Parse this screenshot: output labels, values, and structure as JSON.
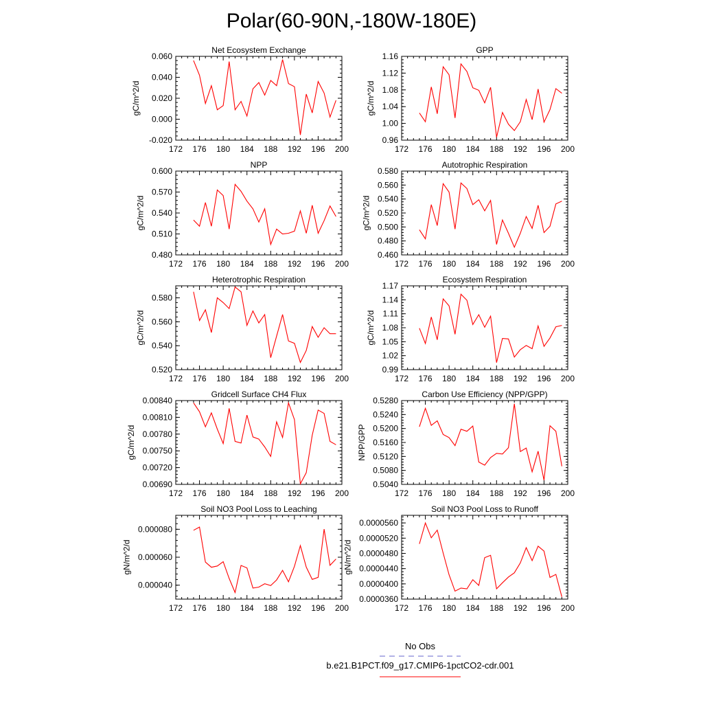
{
  "figure": {
    "title": "Polar(60-90N,-180W-180E)",
    "series_color": "#ff0000",
    "obs_color": "#6666cc",
    "legend": {
      "obs_label": "No Obs",
      "model_label": "b.e21.B1PCT.f09_g17.CMIP6-1pctCO2-cdr.001"
    }
  },
  "chart_data": [
    {
      "type": "line",
      "title": "Net Ecosystem Exchange",
      "ylabel": "gC/m^2/d",
      "xlim": [
        172,
        200
      ],
      "xticks": [
        172,
        176,
        180,
        184,
        188,
        192,
        196,
        200
      ],
      "ylim": [
        -0.02,
        0.06
      ],
      "yticks": [
        "-0.020",
        "0.000",
        "0.020",
        "0.040",
        "0.060"
      ],
      "grid": false,
      "series": [
        {
          "x": [
            175,
            176,
            177,
            178,
            179,
            180,
            181,
            182,
            183,
            184,
            185,
            186,
            187,
            188,
            189,
            190,
            191,
            192,
            193,
            194,
            195,
            196,
            197,
            198,
            199
          ],
          "values": [
            0.056,
            0.042,
            0.015,
            0.032,
            0.009,
            0.013,
            0.055,
            0.009,
            0.017,
            0.003,
            0.029,
            0.035,
            0.023,
            0.037,
            0.032,
            0.057,
            0.034,
            0.031,
            -0.015,
            0.024,
            0.006,
            0.036,
            0.025,
            0.002,
            0.018
          ]
        }
      ]
    },
    {
      "type": "line",
      "title": "GPP",
      "ylabel": "gC/m^2/d",
      "xlim": [
        172,
        200
      ],
      "xticks": [
        172,
        176,
        180,
        184,
        188,
        192,
        196,
        200
      ],
      "ylim": [
        0.96,
        1.16
      ],
      "yticks": [
        "0.96",
        "1.00",
        "1.04",
        "1.08",
        "1.12",
        "1.16"
      ],
      "grid": false,
      "series": [
        {
          "x": [
            175,
            176,
            177,
            178,
            179,
            180,
            181,
            182,
            183,
            184,
            185,
            186,
            187,
            188,
            189,
            190,
            191,
            192,
            193,
            194,
            195,
            196,
            197,
            198,
            199
          ],
          "values": [
            1.025,
            1.004,
            1.087,
            1.023,
            1.135,
            1.116,
            1.013,
            1.142,
            1.124,
            1.085,
            1.079,
            1.049,
            1.086,
            0.967,
            1.026,
            0.998,
            0.983,
            1.004,
            1.057,
            1.009,
            1.082,
            1.003,
            1.033,
            1.083,
            1.072
          ]
        }
      ]
    },
    {
      "type": "line",
      "title": "NPP",
      "ylabel": "gC/m^2/d",
      "xlim": [
        172,
        200
      ],
      "xticks": [
        172,
        176,
        180,
        184,
        188,
        192,
        196,
        200
      ],
      "ylim": [
        0.48,
        0.6
      ],
      "yticks": [
        "0.480",
        "0.510",
        "0.540",
        "0.570",
        "0.600"
      ],
      "grid": false,
      "series": [
        {
          "x": [
            175,
            176,
            177,
            178,
            179,
            180,
            181,
            182,
            183,
            184,
            185,
            186,
            187,
            188,
            189,
            190,
            191,
            192,
            193,
            194,
            195,
            196,
            197,
            198,
            199
          ],
          "values": [
            0.53,
            0.521,
            0.555,
            0.521,
            0.573,
            0.565,
            0.517,
            0.581,
            0.571,
            0.557,
            0.546,
            0.527,
            0.546,
            0.495,
            0.517,
            0.51,
            0.511,
            0.514,
            0.543,
            0.511,
            0.551,
            0.511,
            0.529,
            0.55,
            0.535
          ]
        }
      ]
    },
    {
      "type": "line",
      "title": "Autotrophic Respiration",
      "ylabel": "gC/m^2/d",
      "xlim": [
        172,
        200
      ],
      "xticks": [
        172,
        176,
        180,
        184,
        188,
        192,
        196,
        200
      ],
      "ylim": [
        0.46,
        0.58
      ],
      "yticks": [
        "0.460",
        "0.480",
        "0.500",
        "0.520",
        "0.540",
        "0.560",
        "0.580"
      ],
      "grid": false,
      "series": [
        {
          "x": [
            175,
            176,
            177,
            178,
            179,
            180,
            181,
            182,
            183,
            184,
            185,
            186,
            187,
            188,
            189,
            190,
            191,
            192,
            193,
            194,
            195,
            196,
            197,
            198,
            199
          ],
          "values": [
            0.496,
            0.483,
            0.532,
            0.502,
            0.562,
            0.55,
            0.497,
            0.563,
            0.555,
            0.532,
            0.539,
            0.523,
            0.538,
            0.475,
            0.51,
            0.491,
            0.471,
            0.491,
            0.515,
            0.498,
            0.531,
            0.492,
            0.501,
            0.533,
            0.537
          ]
        }
      ]
    },
    {
      "type": "line",
      "title": "Heterotrophic Respiration",
      "ylabel": "gC/m^2/d",
      "xlim": [
        172,
        200
      ],
      "xticks": [
        172,
        176,
        180,
        184,
        188,
        192,
        196,
        200
      ],
      "ylim": [
        0.52,
        0.59
      ],
      "yticks": [
        "0.520",
        "0.540",
        "0.560",
        "0.580"
      ],
      "grid": false,
      "series": [
        {
          "x": [
            175,
            176,
            177,
            178,
            179,
            180,
            181,
            182,
            183,
            184,
            185,
            186,
            187,
            188,
            189,
            190,
            191,
            192,
            193,
            194,
            195,
            196,
            197,
            198,
            199
          ],
          "values": [
            0.585,
            0.561,
            0.57,
            0.551,
            0.58,
            0.576,
            0.571,
            0.589,
            0.585,
            0.557,
            0.569,
            0.559,
            0.566,
            0.53,
            0.548,
            0.566,
            0.544,
            0.542,
            0.526,
            0.536,
            0.556,
            0.547,
            0.555,
            0.55,
            0.55
          ]
        }
      ]
    },
    {
      "type": "line",
      "title": "Ecosystem Respiration",
      "ylabel": "gC/m^2/d",
      "xlim": [
        172,
        200
      ],
      "xticks": [
        172,
        176,
        180,
        184,
        188,
        192,
        196,
        200
      ],
      "ylim": [
        0.99,
        1.17
      ],
      "yticks": [
        "0.99",
        "1.02",
        "1.05",
        "1.08",
        "1.11",
        "1.14",
        "1.17"
      ],
      "grid": false,
      "series": [
        {
          "x": [
            175,
            176,
            177,
            178,
            179,
            180,
            181,
            182,
            183,
            184,
            185,
            186,
            187,
            188,
            189,
            190,
            191,
            192,
            193,
            194,
            195,
            196,
            197,
            198,
            199
          ],
          "values": [
            1.079,
            1.046,
            1.103,
            1.054,
            1.142,
            1.127,
            1.066,
            1.152,
            1.139,
            1.087,
            1.108,
            1.081,
            1.105,
            1.005,
            1.057,
            1.056,
            1.017,
            1.033,
            1.042,
            1.035,
            1.084,
            1.04,
            1.058,
            1.082,
            1.085
          ]
        }
      ]
    },
    {
      "type": "line",
      "title": "Gridcell Surface CH4 Flux",
      "ylabel": "gC/m^2/d",
      "xlim": [
        172,
        200
      ],
      "xticks": [
        172,
        176,
        180,
        184,
        188,
        192,
        196,
        200
      ],
      "ylim": [
        0.0069,
        0.0084
      ],
      "yticks": [
        "0.00690",
        "0.00720",
        "0.00750",
        "0.00780",
        "0.00810",
        "0.00840"
      ],
      "grid": false,
      "series": [
        {
          "x": [
            175,
            176,
            177,
            178,
            179,
            180,
            181,
            182,
            183,
            184,
            185,
            186,
            187,
            188,
            189,
            190,
            191,
            192,
            193,
            194,
            195,
            196,
            197,
            198,
            199
          ],
          "values": [
            0.00836,
            0.0082,
            0.00793,
            0.00818,
            0.00789,
            0.00763,
            0.00826,
            0.00767,
            0.00764,
            0.00814,
            0.00775,
            0.00771,
            0.00757,
            0.0074,
            0.00802,
            0.00774,
            0.00836,
            0.00806,
            0.00691,
            0.00711,
            0.00778,
            0.00823,
            0.00817,
            0.00767,
            0.00761
          ]
        }
      ]
    },
    {
      "type": "line",
      "title": "Carbon Use Efficiency (NPP/GPP)",
      "ylabel": "NPP/GPP",
      "xlim": [
        172,
        200
      ],
      "xticks": [
        172,
        176,
        180,
        184,
        188,
        192,
        196,
        200
      ],
      "ylim": [
        0.504,
        0.528
      ],
      "yticks": [
        "0.5040",
        "0.5080",
        "0.5120",
        "0.5160",
        "0.5200",
        "0.5240",
        "0.5280"
      ],
      "grid": false,
      "series": [
        {
          "x": [
            175,
            176,
            177,
            178,
            179,
            180,
            181,
            182,
            183,
            184,
            185,
            186,
            187,
            188,
            189,
            190,
            191,
            192,
            193,
            194,
            195,
            196,
            197,
            198,
            199
          ],
          "values": [
            0.5205,
            0.5258,
            0.5209,
            0.5222,
            0.5183,
            0.5174,
            0.5151,
            0.5198,
            0.5192,
            0.5207,
            0.5104,
            0.5095,
            0.5117,
            0.5129,
            0.5127,
            0.5145,
            0.5271,
            0.5134,
            0.5144,
            0.5076,
            0.5135,
            0.5052,
            0.5208,
            0.5192,
            0.5092
          ]
        }
      ]
    },
    {
      "type": "line",
      "title": "Soil NO3 Pool Loss to Leaching",
      "ylabel": "gN/m^2/d",
      "xlim": [
        172,
        200
      ],
      "xticks": [
        172,
        176,
        180,
        184,
        188,
        192,
        196,
        200
      ],
      "ylim": [
        3e-05,
        9e-05
      ],
      "yticks": [
        "0.000040",
        "0.000060",
        "0.000080"
      ],
      "grid": false,
      "series": [
        {
          "x": [
            175,
            176,
            177,
            178,
            179,
            180,
            181,
            182,
            183,
            184,
            185,
            186,
            187,
            188,
            189,
            190,
            191,
            192,
            193,
            194,
            195,
            196,
            197,
            198,
            199
          ],
          "values": [
            7.93e-05,
            8.16e-05,
            5.65e-05,
            5.28e-05,
            5.37e-05,
            5.68e-05,
            4.48e-05,
            3.47e-05,
            5.41e-05,
            5.24e-05,
            3.79e-05,
            3.86e-05,
            4.1e-05,
            3.97e-05,
            4.37e-05,
            5.06e-05,
            4.24e-05,
            5.35e-05,
            6.83e-05,
            5.29e-05,
            4.41e-05,
            4.56e-05,
            8.01e-05,
            5.42e-05,
            5.87e-05
          ]
        }
      ]
    },
    {
      "type": "line",
      "title": "Soil NO3 Pool Loss to Runoff",
      "ylabel": "gN/m^2/d",
      "xlim": [
        172,
        200
      ],
      "xticks": [
        172,
        176,
        180,
        184,
        188,
        192,
        196,
        200
      ],
      "ylim": [
        3.6e-05,
        5.8e-05
      ],
      "yticks": [
        "0.0000360",
        "0.0000400",
        "0.0000440",
        "0.0000480",
        "0.0000520",
        "0.0000560"
      ],
      "grid": false,
      "series": [
        {
          "x": [
            175,
            176,
            177,
            178,
            179,
            180,
            181,
            182,
            183,
            184,
            185,
            186,
            187,
            188,
            189,
            190,
            191,
            192,
            193,
            194,
            195,
            196,
            197,
            198,
            199
          ],
          "values": [
            5.05e-05,
            5.6e-05,
            5.21e-05,
            5.41e-05,
            4.81e-05,
            4.24e-05,
            3.81e-05,
            3.89e-05,
            3.87e-05,
            4.11e-05,
            3.96e-05,
            4.69e-05,
            4.75e-05,
            3.87e-05,
            4.03e-05,
            4.18e-05,
            4.29e-05,
            4.55e-05,
            4.95e-05,
            4.61e-05,
            4.99e-05,
            4.86e-05,
            4.17e-05,
            4.25e-05,
            3.66e-05
          ]
        }
      ]
    }
  ]
}
